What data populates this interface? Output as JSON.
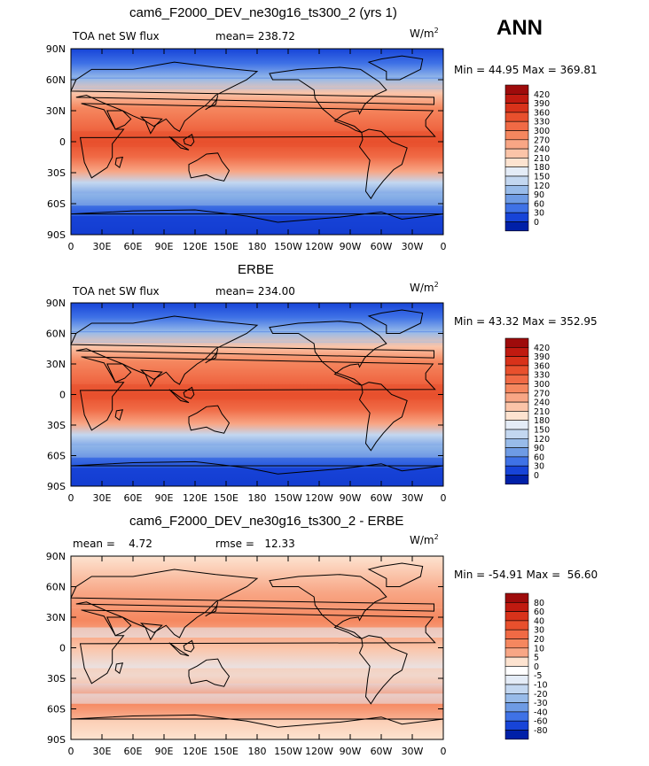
{
  "season": "ANN",
  "chart_data": [
    {
      "type": "heatmap",
      "title": "cam6_F2000_DEV_ne30g16_ts300_2 (yrs 1)",
      "left_label": "TOA net SW flux",
      "center_label": "mean= 238.72",
      "units": "W/m",
      "units_exp": "2",
      "min_max": "Min =  44.95 Max = 369.81",
      "lat_ticks": [
        "90N",
        "60N",
        "30N",
        "0",
        "30S",
        "60S",
        "90S"
      ],
      "lon_ticks": [
        "0",
        "30E",
        "60E",
        "90E",
        "120E",
        "150E",
        "180",
        "150W",
        "120W",
        "90W",
        "60W",
        "30W",
        "0"
      ],
      "colorbar_labels": [
        "420",
        "390",
        "360",
        "330",
        "300",
        "270",
        "240",
        "210",
        "180",
        "150",
        "120",
        "90",
        "60",
        "30",
        "0"
      ],
      "colorbar_colors": [
        "#9e0b0b",
        "#c01a10",
        "#d8321a",
        "#e8502d",
        "#f06a45",
        "#f5875f",
        "#f8a685",
        "#fbc4a8",
        "#fde3d0",
        "#e4ecf7",
        "#c3d7f0",
        "#98bbe9",
        "#6e9be4",
        "#3f72e6",
        "#1744d8",
        "#0020a8"
      ]
    },
    {
      "type": "heatmap",
      "title": "ERBE",
      "left_label": "TOA net SW flux",
      "center_label": "mean= 234.00",
      "units": "W/m",
      "units_exp": "2",
      "min_max": "Min =  43.32 Max = 352.95",
      "lat_ticks": [
        "90N",
        "60N",
        "30N",
        "0",
        "30S",
        "60S",
        "90S"
      ],
      "lon_ticks": [
        "0",
        "30E",
        "60E",
        "90E",
        "120E",
        "150E",
        "180",
        "150W",
        "120W",
        "90W",
        "60W",
        "30W",
        "0"
      ],
      "colorbar_labels": [
        "420",
        "390",
        "360",
        "330",
        "300",
        "270",
        "240",
        "210",
        "180",
        "150",
        "120",
        "90",
        "60",
        "30",
        "0"
      ],
      "colorbar_colors": [
        "#9e0b0b",
        "#c01a10",
        "#d8321a",
        "#e8502d",
        "#f06a45",
        "#f5875f",
        "#f8a685",
        "#fbc4a8",
        "#fde3d0",
        "#e4ecf7",
        "#c3d7f0",
        "#98bbe9",
        "#6e9be4",
        "#3f72e6",
        "#1744d8",
        "#0020a8"
      ]
    },
    {
      "type": "heatmap",
      "title": "cam6_F2000_DEV_ne30g16_ts300_2 - ERBE",
      "left_label": "mean =    4.72",
      "center_label": "rmse =   12.33",
      "units": "W/m",
      "units_exp": "2",
      "min_max": "Min = -54.91 Max =  56.60",
      "lat_ticks": [
        "90N",
        "60N",
        "30N",
        "0",
        "30S",
        "60S",
        "90S"
      ],
      "lon_ticks": [
        "0",
        "30E",
        "60E",
        "90E",
        "120E",
        "150E",
        "180",
        "150W",
        "120W",
        "90W",
        "60W",
        "30W",
        "0"
      ],
      "colorbar_labels": [
        "80",
        "60",
        "40",
        "30",
        "20",
        "10",
        "5",
        "0",
        "-5",
        "-10",
        "-20",
        "-30",
        "-40",
        "-60",
        "-80"
      ],
      "colorbar_colors": [
        "#9e0b0b",
        "#c01a10",
        "#d8321a",
        "#e8502d",
        "#f06a45",
        "#f5875f",
        "#f8a685",
        "#fde3d0",
        "#ffffff",
        "#e4ecf7",
        "#c3d7f0",
        "#98bbe9",
        "#6e9be4",
        "#3f72e6",
        "#1744d8",
        "#0020a8"
      ]
    }
  ]
}
